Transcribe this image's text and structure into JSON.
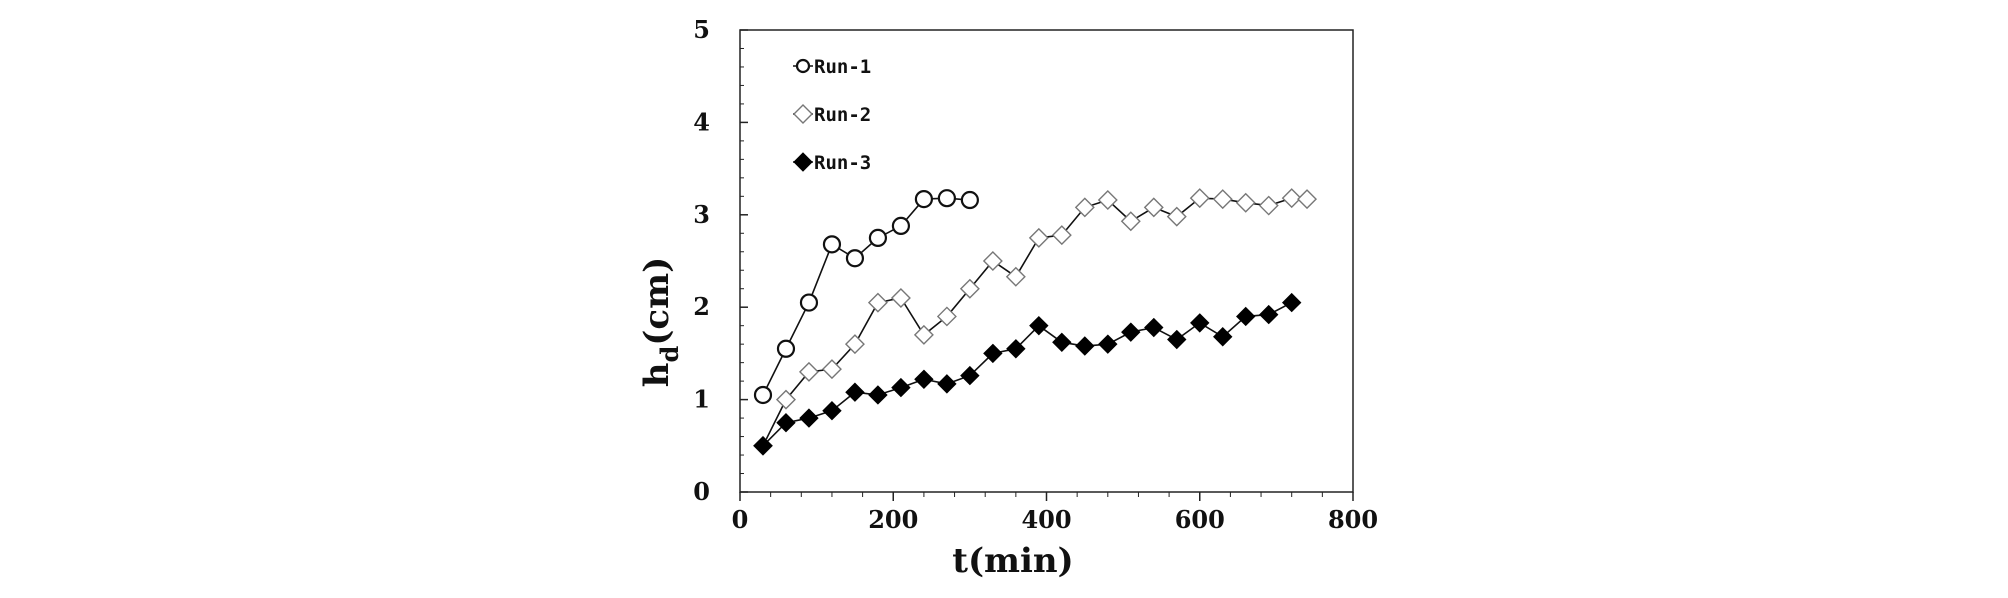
{
  "chart_data": {
    "type": "line",
    "title": "",
    "xlabel": "t(min)",
    "ylabel_main": "h",
    "ylabel_sub": "d",
    "ylabel_suffix": "(cm)",
    "xlim": [
      0,
      800
    ],
    "ylim": [
      0,
      5
    ],
    "xticks": [
      0,
      200,
      400,
      600,
      800
    ],
    "yticks": [
      0,
      1,
      2,
      3,
      4,
      5
    ],
    "grid": false,
    "legend_position": "top-left",
    "series": [
      {
        "name": "Run-1",
        "marker": "open-circle",
        "x": [
          30,
          60,
          90,
          120,
          150,
          180,
          210,
          240,
          270,
          300
        ],
        "y": [
          1.05,
          1.55,
          2.05,
          2.68,
          2.53,
          2.75,
          2.88,
          3.17,
          3.18,
          3.16
        ]
      },
      {
        "name": "Run-2",
        "marker": "open-diamond",
        "x": [
          30,
          60,
          90,
          120,
          150,
          180,
          210,
          240,
          270,
          300,
          330,
          360,
          390,
          420,
          450,
          480,
          510,
          540,
          570,
          600,
          630,
          660,
          690,
          720,
          740
        ],
        "y": [
          0.5,
          1.0,
          1.3,
          1.33,
          1.6,
          2.05,
          2.1,
          1.7,
          1.9,
          2.2,
          2.5,
          2.33,
          2.75,
          2.78,
          3.08,
          3.16,
          2.93,
          3.08,
          2.98,
          3.18,
          3.17,
          3.13,
          3.1,
          3.18,
          3.17
        ]
      },
      {
        "name": "Run-3",
        "marker": "filled-diamond",
        "x": [
          30,
          60,
          90,
          120,
          150,
          180,
          210,
          240,
          270,
          300,
          330,
          360,
          390,
          420,
          450,
          480,
          510,
          540,
          570,
          600,
          630,
          660,
          690,
          720
        ],
        "y": [
          0.5,
          0.75,
          0.8,
          0.88,
          1.08,
          1.05,
          1.13,
          1.22,
          1.17,
          1.26,
          1.5,
          1.55,
          1.8,
          1.62,
          1.58,
          1.6,
          1.73,
          1.78,
          1.65,
          1.83,
          1.68,
          1.9,
          1.92,
          2.05
        ]
      }
    ]
  }
}
